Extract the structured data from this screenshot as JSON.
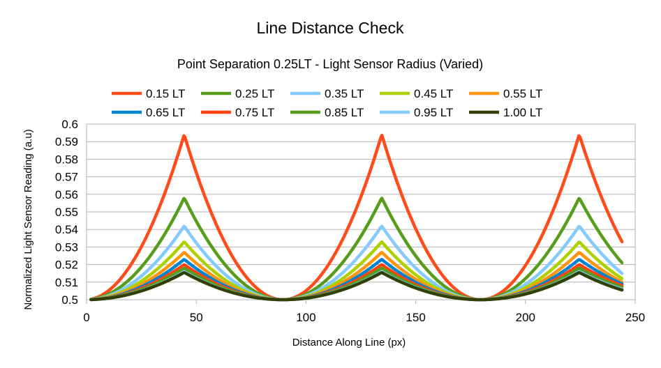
{
  "chart_data": {
    "type": "line",
    "title": "Line Distance Check",
    "subtitle": "Point Separation 0.25LT - Light Sensor Radius (Varied)",
    "xlabel": "Distance Along Line (px)",
    "ylabel": "Normalized Light Sensor Reading (a.u)",
    "xlim": [
      0,
      250
    ],
    "ylim": [
      0.5,
      0.6
    ],
    "x_ticks": [
      "0",
      "50",
      "100",
      "150",
      "200",
      "250"
    ],
    "y_ticks": [
      "0.5",
      "0.51",
      "0.52",
      "0.53",
      "0.54",
      "0.55",
      "0.56",
      "0.57",
      "0.58",
      "0.59",
      "0.6"
    ],
    "grid": "horizontal",
    "legend_position": "top",
    "x_range": [
      2,
      244
    ],
    "peaks_x": [
      44.5,
      134.5,
      224.5
    ],
    "troughs_x": [
      89.5,
      179.5
    ],
    "series": [
      {
        "name": "0.15 LT",
        "color": "#ff4b1a",
        "peak": 0.594,
        "end_value": 0.533
      },
      {
        "name": "0.25 LT",
        "color": "#579d1c",
        "peak": 0.558,
        "end_value": 0.521
      },
      {
        "name": "0.35 LT",
        "color": "#83caff",
        "peak": 0.542,
        "end_value": 0.515
      },
      {
        "name": "0.45 LT",
        "color": "#aecf00",
        "peak": 0.533,
        "end_value": 0.512
      },
      {
        "name": "0.55 LT",
        "color": "#ff950e",
        "peak": 0.527,
        "end_value": 0.51
      },
      {
        "name": "0.65 LT",
        "color": "#0084d1",
        "peak": 0.523,
        "end_value": 0.509
      },
      {
        "name": "0.75 LT",
        "color": "#ff420e",
        "peak": 0.52,
        "end_value": 0.508
      },
      {
        "name": "0.85 LT",
        "color": "#579d1c",
        "peak": 0.518,
        "end_value": 0.507
      },
      {
        "name": "0.95 LT",
        "color": "#83caff",
        "peak": 0.516,
        "end_value": 0.506
      },
      {
        "name": "1.00 LT",
        "color": "#314004",
        "peak": 0.5155,
        "end_value": 0.5055
      }
    ],
    "colors": {
      "grid": "#b3b3b3",
      "axis": "#b3b3b3",
      "background": "#ffffff"
    }
  }
}
